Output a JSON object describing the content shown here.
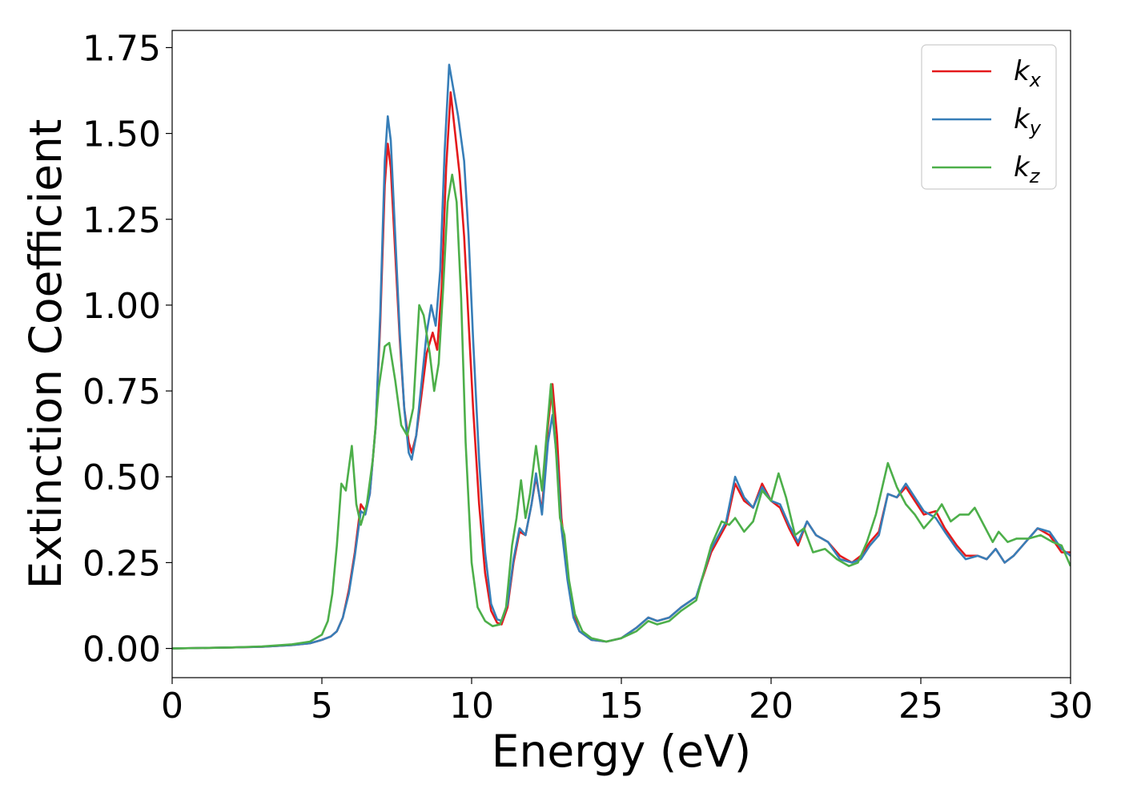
{
  "chart_data": {
    "type": "line",
    "xlabel": "Energy (eV)",
    "ylabel": "Extinction Coefficient",
    "xlim": [
      0,
      30
    ],
    "ylim": [
      -0.085,
      1.8
    ],
    "xticks": [
      0,
      5,
      10,
      15,
      20,
      25,
      30
    ],
    "yticks": [
      0.0,
      0.25,
      0.5,
      0.75,
      1.0,
      1.25,
      1.5,
      1.75
    ],
    "xtick_labels": [
      "0",
      "5",
      "10",
      "15",
      "20",
      "25",
      "30"
    ],
    "ytick_labels": [
      "0.00",
      "0.25",
      "0.50",
      "0.75",
      "1.00",
      "1.25",
      "1.50",
      "1.75"
    ],
    "grid": false,
    "legend_position": "top-right",
    "series": [
      {
        "name": "k_x",
        "label_main": "k",
        "label_sub": "x",
        "color": "#e41a1c",
        "points": [
          [
            0,
            0
          ],
          [
            2,
            0.003
          ],
          [
            3,
            0.005
          ],
          [
            4,
            0.01
          ],
          [
            4.6,
            0.015
          ],
          [
            5,
            0.025
          ],
          [
            5.3,
            0.035
          ],
          [
            5.5,
            0.05
          ],
          [
            5.7,
            0.09
          ],
          [
            5.9,
            0.17
          ],
          [
            6.1,
            0.28
          ],
          [
            6.3,
            0.42
          ],
          [
            6.45,
            0.4
          ],
          [
            6.6,
            0.45
          ],
          [
            6.8,
            0.65
          ],
          [
            6.95,
            0.95
          ],
          [
            7.1,
            1.35
          ],
          [
            7.2,
            1.47
          ],
          [
            7.3,
            1.4
          ],
          [
            7.45,
            1.15
          ],
          [
            7.6,
            0.9
          ],
          [
            7.75,
            0.7
          ],
          [
            7.9,
            0.6
          ],
          [
            8.0,
            0.57
          ],
          [
            8.15,
            0.62
          ],
          [
            8.3,
            0.72
          ],
          [
            8.5,
            0.86
          ],
          [
            8.7,
            0.92
          ],
          [
            8.85,
            0.87
          ],
          [
            9.0,
            1.05
          ],
          [
            9.15,
            1.4
          ],
          [
            9.3,
            1.62
          ],
          [
            9.45,
            1.5
          ],
          [
            9.6,
            1.38
          ],
          [
            9.75,
            1.2
          ],
          [
            9.9,
            0.95
          ],
          [
            10.05,
            0.7
          ],
          [
            10.25,
            0.42
          ],
          [
            10.45,
            0.22
          ],
          [
            10.65,
            0.11
          ],
          [
            10.85,
            0.075
          ],
          [
            11.0,
            0.07
          ],
          [
            11.2,
            0.12
          ],
          [
            11.4,
            0.25
          ],
          [
            11.6,
            0.34
          ],
          [
            11.8,
            0.33
          ],
          [
            12.0,
            0.42
          ],
          [
            12.15,
            0.5
          ],
          [
            12.35,
            0.4
          ],
          [
            12.55,
            0.65
          ],
          [
            12.7,
            0.77
          ],
          [
            12.85,
            0.62
          ],
          [
            13.0,
            0.38
          ],
          [
            13.2,
            0.22
          ],
          [
            13.4,
            0.1
          ],
          [
            13.6,
            0.05
          ],
          [
            14.0,
            0.025
          ],
          [
            14.5,
            0.02
          ],
          [
            15.0,
            0.03
          ],
          [
            15.5,
            0.06
          ],
          [
            15.9,
            0.09
          ],
          [
            16.2,
            0.08
          ],
          [
            16.6,
            0.09
          ],
          [
            17.0,
            0.12
          ],
          [
            17.5,
            0.15
          ],
          [
            18.0,
            0.28
          ],
          [
            18.5,
            0.36
          ],
          [
            18.8,
            0.48
          ],
          [
            19.1,
            0.43
          ],
          [
            19.4,
            0.41
          ],
          [
            19.7,
            0.48
          ],
          [
            20.0,
            0.43
          ],
          [
            20.3,
            0.41
          ],
          [
            20.6,
            0.35
          ],
          [
            20.9,
            0.3
          ],
          [
            21.2,
            0.37
          ],
          [
            21.5,
            0.33
          ],
          [
            21.9,
            0.31
          ],
          [
            22.3,
            0.27
          ],
          [
            22.7,
            0.25
          ],
          [
            23.0,
            0.27
          ],
          [
            23.3,
            0.31
          ],
          [
            23.6,
            0.34
          ],
          [
            23.9,
            0.45
          ],
          [
            24.2,
            0.44
          ],
          [
            24.5,
            0.47
          ],
          [
            24.8,
            0.43
          ],
          [
            25.1,
            0.39
          ],
          [
            25.5,
            0.4
          ],
          [
            25.8,
            0.35
          ],
          [
            26.2,
            0.3
          ],
          [
            26.5,
            0.27
          ],
          [
            26.9,
            0.27
          ],
          [
            27.2,
            0.26
          ],
          [
            27.5,
            0.29
          ],
          [
            27.8,
            0.25
          ],
          [
            28.1,
            0.27
          ],
          [
            28.5,
            0.31
          ],
          [
            28.9,
            0.35
          ],
          [
            29.3,
            0.33
          ],
          [
            29.7,
            0.28
          ],
          [
            30.0,
            0.28
          ]
        ]
      },
      {
        "name": "k_y",
        "label_main": "k",
        "label_sub": "y",
        "color": "#377eb8",
        "points": [
          [
            0,
            0
          ],
          [
            2,
            0.003
          ],
          [
            3,
            0.005
          ],
          [
            4,
            0.01
          ],
          [
            4.6,
            0.015
          ],
          [
            5,
            0.025
          ],
          [
            5.3,
            0.035
          ],
          [
            5.5,
            0.05
          ],
          [
            5.7,
            0.09
          ],
          [
            5.9,
            0.16
          ],
          [
            6.1,
            0.27
          ],
          [
            6.3,
            0.4
          ],
          [
            6.45,
            0.39
          ],
          [
            6.6,
            0.45
          ],
          [
            6.8,
            0.65
          ],
          [
            6.95,
            0.98
          ],
          [
            7.1,
            1.42
          ],
          [
            7.2,
            1.55
          ],
          [
            7.3,
            1.48
          ],
          [
            7.45,
            1.2
          ],
          [
            7.6,
            0.92
          ],
          [
            7.75,
            0.7
          ],
          [
            7.9,
            0.57
          ],
          [
            8.0,
            0.55
          ],
          [
            8.15,
            0.62
          ],
          [
            8.3,
            0.75
          ],
          [
            8.5,
            0.92
          ],
          [
            8.65,
            1.0
          ],
          [
            8.8,
            0.94
          ],
          [
            8.95,
            1.1
          ],
          [
            9.1,
            1.45
          ],
          [
            9.25,
            1.7
          ],
          [
            9.35,
            1.65
          ],
          [
            9.55,
            1.55
          ],
          [
            9.75,
            1.42
          ],
          [
            9.9,
            1.2
          ],
          [
            10.05,
            0.9
          ],
          [
            10.25,
            0.55
          ],
          [
            10.45,
            0.28
          ],
          [
            10.65,
            0.13
          ],
          [
            10.85,
            0.085
          ],
          [
            11.0,
            0.08
          ],
          [
            11.2,
            0.13
          ],
          [
            11.4,
            0.26
          ],
          [
            11.6,
            0.35
          ],
          [
            11.8,
            0.33
          ],
          [
            12.0,
            0.42
          ],
          [
            12.15,
            0.51
          ],
          [
            12.35,
            0.39
          ],
          [
            12.55,
            0.6
          ],
          [
            12.7,
            0.68
          ],
          [
            12.85,
            0.55
          ],
          [
            13.0,
            0.35
          ],
          [
            13.2,
            0.2
          ],
          [
            13.4,
            0.09
          ],
          [
            13.6,
            0.05
          ],
          [
            14.0,
            0.025
          ],
          [
            14.5,
            0.02
          ],
          [
            15.0,
            0.03
          ],
          [
            15.5,
            0.06
          ],
          [
            15.9,
            0.09
          ],
          [
            16.2,
            0.08
          ],
          [
            16.6,
            0.09
          ],
          [
            17.0,
            0.12
          ],
          [
            17.5,
            0.15
          ],
          [
            18.0,
            0.29
          ],
          [
            18.5,
            0.37
          ],
          [
            18.8,
            0.5
          ],
          [
            19.1,
            0.44
          ],
          [
            19.4,
            0.41
          ],
          [
            19.7,
            0.47
          ],
          [
            20.0,
            0.43
          ],
          [
            20.3,
            0.42
          ],
          [
            20.6,
            0.36
          ],
          [
            20.9,
            0.31
          ],
          [
            21.2,
            0.37
          ],
          [
            21.5,
            0.33
          ],
          [
            21.9,
            0.31
          ],
          [
            22.3,
            0.26
          ],
          [
            22.7,
            0.25
          ],
          [
            23.0,
            0.26
          ],
          [
            23.3,
            0.3
          ],
          [
            23.6,
            0.33
          ],
          [
            23.9,
            0.45
          ],
          [
            24.2,
            0.44
          ],
          [
            24.5,
            0.48
          ],
          [
            24.8,
            0.44
          ],
          [
            25.1,
            0.4
          ],
          [
            25.5,
            0.38
          ],
          [
            25.8,
            0.34
          ],
          [
            26.2,
            0.29
          ],
          [
            26.5,
            0.26
          ],
          [
            26.9,
            0.27
          ],
          [
            27.2,
            0.26
          ],
          [
            27.5,
            0.29
          ],
          [
            27.8,
            0.25
          ],
          [
            28.1,
            0.27
          ],
          [
            28.5,
            0.31
          ],
          [
            28.9,
            0.35
          ],
          [
            29.3,
            0.34
          ],
          [
            29.7,
            0.29
          ],
          [
            30.0,
            0.27
          ]
        ]
      },
      {
        "name": "k_z",
        "label_main": "k",
        "label_sub": "z",
        "color": "#4daf4a",
        "points": [
          [
            0,
            0
          ],
          [
            2,
            0.003
          ],
          [
            3,
            0.006
          ],
          [
            4,
            0.012
          ],
          [
            4.6,
            0.02
          ],
          [
            5,
            0.04
          ],
          [
            5.2,
            0.08
          ],
          [
            5.35,
            0.16
          ],
          [
            5.5,
            0.3
          ],
          [
            5.65,
            0.48
          ],
          [
            5.8,
            0.46
          ],
          [
            6.0,
            0.59
          ],
          [
            6.15,
            0.42
          ],
          [
            6.3,
            0.36
          ],
          [
            6.5,
            0.42
          ],
          [
            6.7,
            0.55
          ],
          [
            6.9,
            0.76
          ],
          [
            7.1,
            0.88
          ],
          [
            7.25,
            0.89
          ],
          [
            7.45,
            0.78
          ],
          [
            7.65,
            0.65
          ],
          [
            7.85,
            0.62
          ],
          [
            8.05,
            0.7
          ],
          [
            8.25,
            1.0
          ],
          [
            8.4,
            0.97
          ],
          [
            8.6,
            0.86
          ],
          [
            8.75,
            0.75
          ],
          [
            8.9,
            0.83
          ],
          [
            9.05,
            1.05
          ],
          [
            9.2,
            1.3
          ],
          [
            9.35,
            1.38
          ],
          [
            9.5,
            1.3
          ],
          [
            9.65,
            1.02
          ],
          [
            9.8,
            0.6
          ],
          [
            10.0,
            0.25
          ],
          [
            10.2,
            0.12
          ],
          [
            10.45,
            0.08
          ],
          [
            10.7,
            0.065
          ],
          [
            10.95,
            0.07
          ],
          [
            11.15,
            0.12
          ],
          [
            11.35,
            0.3
          ],
          [
            11.5,
            0.38
          ],
          [
            11.65,
            0.49
          ],
          [
            11.8,
            0.38
          ],
          [
            11.95,
            0.45
          ],
          [
            12.15,
            0.59
          ],
          [
            12.35,
            0.46
          ],
          [
            12.5,
            0.62
          ],
          [
            12.65,
            0.77
          ],
          [
            12.8,
            0.6
          ],
          [
            12.95,
            0.38
          ],
          [
            13.1,
            0.33
          ],
          [
            13.25,
            0.2
          ],
          [
            13.45,
            0.1
          ],
          [
            13.7,
            0.05
          ],
          [
            14.0,
            0.03
          ],
          [
            14.5,
            0.02
          ],
          [
            15.0,
            0.03
          ],
          [
            15.5,
            0.05
          ],
          [
            15.9,
            0.08
          ],
          [
            16.2,
            0.07
          ],
          [
            16.6,
            0.08
          ],
          [
            17.0,
            0.11
          ],
          [
            17.5,
            0.14
          ],
          [
            18.0,
            0.3
          ],
          [
            18.35,
            0.37
          ],
          [
            18.6,
            0.36
          ],
          [
            18.8,
            0.38
          ],
          [
            19.1,
            0.34
          ],
          [
            19.4,
            0.37
          ],
          [
            19.7,
            0.46
          ],
          [
            20.0,
            0.43
          ],
          [
            20.25,
            0.51
          ],
          [
            20.5,
            0.44
          ],
          [
            20.8,
            0.33
          ],
          [
            21.1,
            0.35
          ],
          [
            21.4,
            0.28
          ],
          [
            21.8,
            0.29
          ],
          [
            22.2,
            0.26
          ],
          [
            22.6,
            0.24
          ],
          [
            22.9,
            0.25
          ],
          [
            23.2,
            0.31
          ],
          [
            23.5,
            0.39
          ],
          [
            23.9,
            0.54
          ],
          [
            24.2,
            0.47
          ],
          [
            24.5,
            0.42
          ],
          [
            24.8,
            0.39
          ],
          [
            25.1,
            0.35
          ],
          [
            25.4,
            0.38
          ],
          [
            25.7,
            0.42
          ],
          [
            26.0,
            0.37
          ],
          [
            26.3,
            0.39
          ],
          [
            26.6,
            0.39
          ],
          [
            26.8,
            0.41
          ],
          [
            27.1,
            0.36
          ],
          [
            27.4,
            0.31
          ],
          [
            27.6,
            0.34
          ],
          [
            27.9,
            0.31
          ],
          [
            28.2,
            0.32
          ],
          [
            28.6,
            0.32
          ],
          [
            29.0,
            0.33
          ],
          [
            29.4,
            0.31
          ],
          [
            29.7,
            0.3
          ],
          [
            30.0,
            0.24
          ]
        ]
      }
    ]
  }
}
